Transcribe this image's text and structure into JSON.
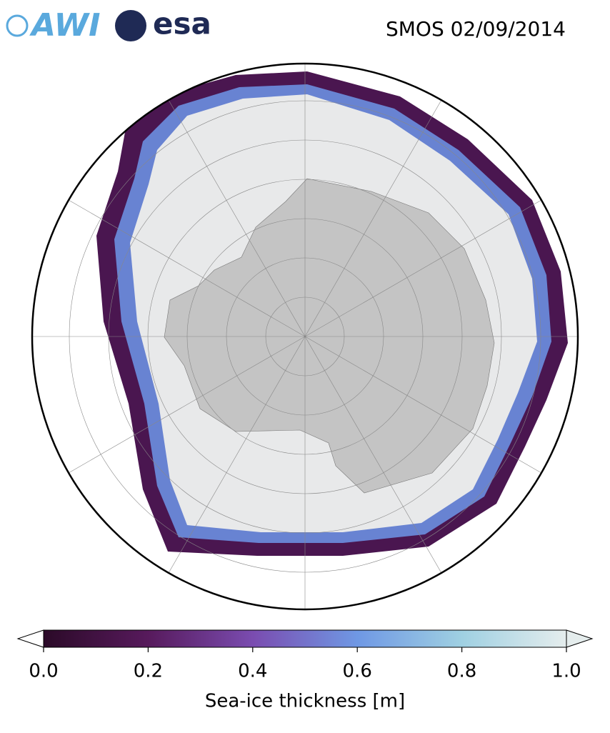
{
  "header": {
    "logos": [
      "AWI",
      "esa"
    ],
    "title": "SMOS 02/09/2014"
  },
  "colorbar": {
    "label": "Sea-ice thickness [m]",
    "lim": [
      0,
      1
    ],
    "ticks": [
      {
        "value": 0,
        "label": "0.0"
      },
      {
        "value": 0.2,
        "label": "0.2"
      },
      {
        "value": 0.4,
        "label": "0.4"
      },
      {
        "value": 0.6,
        "label": "0.6"
      },
      {
        "value": 0.8,
        "label": "0.8"
      },
      {
        "value": 1,
        "label": "1.0"
      }
    ]
  }
}
